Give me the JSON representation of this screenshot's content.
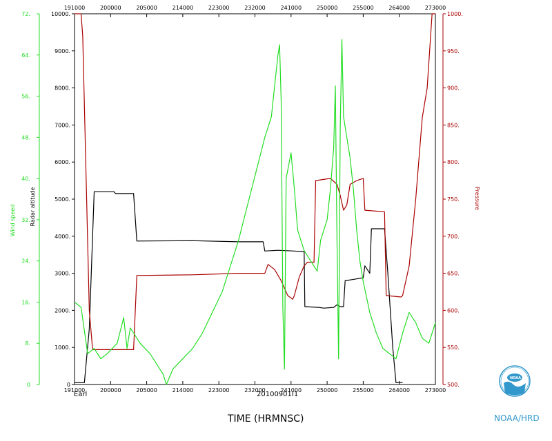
{
  "chart_data": {
    "type": "line",
    "storm_label": "Earl",
    "date_label": "20100901I1",
    "xlabel": "TIME (HRMNSC)",
    "logo_text": "NOAA/HRD",
    "x_ticks": [
      "191000",
      "200000",
      "205000",
      "214000",
      "223000",
      "232000",
      "241000",
      "250000",
      "255000",
      "264000",
      "273000"
    ],
    "x_range": [
      "191000",
      "273000"
    ],
    "axes": {
      "wind": {
        "label": "Wind speed",
        "color": "#22dd22",
        "ticks": [
          "0",
          "8.",
          "16.",
          "24.",
          "32.",
          "40.",
          "48.",
          "56.",
          "64.",
          "72."
        ],
        "range": [
          0,
          72
        ]
      },
      "altitude": {
        "label": "Radar altitude",
        "color": "#000000",
        "ticks": [
          "0",
          "1000.",
          "2000.",
          "3000.",
          "4000.",
          "5000.",
          "6000.",
          "7000.",
          "8000.",
          "9000.",
          "10000."
        ],
        "range": [
          0,
          10000
        ]
      },
      "pressure": {
        "label": "Pressure",
        "color": "#aa0000",
        "ticks": [
          "500.",
          "550.",
          "600.",
          "650.",
          "700.",
          "750.",
          "800.",
          "850.",
          "900.",
          "950.",
          "1000."
        ],
        "range": [
          500,
          1000
        ]
      }
    },
    "series": [
      {
        "name": "Radar altitude",
        "axis": "altitude",
        "color": "#000000",
        "points": [
          [
            0,
            50
          ],
          [
            0.03,
            50
          ],
          [
            0.045,
            1500
          ],
          [
            0.06,
            5200
          ],
          [
            0.12,
            5200
          ],
          [
            0.125,
            5150
          ],
          [
            0.18,
            5150
          ],
          [
            0.19,
            3870
          ],
          [
            0.36,
            3880
          ],
          [
            0.5,
            3850
          ],
          [
            0.575,
            3850
          ],
          [
            0.58,
            3600
          ],
          [
            0.62,
            3620
          ],
          [
            0.67,
            3600
          ],
          [
            0.7,
            3580
          ],
          [
            0.702,
            2100
          ],
          [
            0.745,
            2080
          ],
          [
            0.76,
            2060
          ],
          [
            0.79,
            2080
          ],
          [
            0.8,
            2150
          ],
          [
            0.81,
            2100
          ],
          [
            0.82,
            2100
          ],
          [
            0.825,
            2800
          ],
          [
            0.86,
            2850
          ],
          [
            0.88,
            2880
          ],
          [
            0.885,
            3200
          ],
          [
            0.9,
            3000
          ],
          [
            0.905,
            4200
          ],
          [
            0.945,
            4200
          ],
          [
            0.955,
            3000
          ],
          [
            0.97,
            1000
          ],
          [
            0.98,
            50
          ],
          [
            1,
            50
          ]
        ]
      },
      {
        "name": "Pressure",
        "axis": "pressure",
        "color": "#aa0000",
        "points": [
          [
            0,
            1000
          ],
          [
            0.02,
            1000
          ],
          [
            0.025,
            970
          ],
          [
            0.045,
            600
          ],
          [
            0.055,
            547
          ],
          [
            0.18,
            547
          ],
          [
            0.19,
            647
          ],
          [
            0.36,
            648
          ],
          [
            0.5,
            650
          ],
          [
            0.58,
            650
          ],
          [
            0.59,
            662
          ],
          [
            0.61,
            655
          ],
          [
            0.63,
            640
          ],
          [
            0.65,
            620
          ],
          [
            0.665,
            615
          ],
          [
            0.67,
            620
          ],
          [
            0.685,
            645
          ],
          [
            0.7,
            660
          ],
          [
            0.71,
            665
          ],
          [
            0.73,
            665
          ],
          [
            0.735,
            775
          ],
          [
            0.78,
            778
          ],
          [
            0.8,
            770
          ],
          [
            0.81,
            755
          ],
          [
            0.82,
            735
          ],
          [
            0.83,
            742
          ],
          [
            0.84,
            770
          ],
          [
            0.86,
            775
          ],
          [
            0.88,
            778
          ],
          [
            0.885,
            735
          ],
          [
            0.945,
            733
          ],
          [
            0.95,
            620
          ],
          [
            0.995,
            618
          ],
          [
            1,
            620
          ],
          [
            1.02,
            660
          ],
          [
            1.04,
            750
          ],
          [
            1.06,
            860
          ],
          [
            1.075,
            900
          ],
          [
            1.09,
            1000
          ],
          [
            1.1,
            1000
          ]
        ]
      },
      {
        "name": "Wind speed",
        "axis": "wind",
        "color": "#22dd22",
        "points": [
          [
            0,
            16
          ],
          [
            0.02,
            15
          ],
          [
            0.04,
            6
          ],
          [
            0.06,
            7
          ],
          [
            0.08,
            5
          ],
          [
            0.1,
            6
          ],
          [
            0.13,
            8
          ],
          [
            0.15,
            13
          ],
          [
            0.16,
            7
          ],
          [
            0.17,
            11
          ],
          [
            0.2,
            8
          ],
          [
            0.23,
            6
          ],
          [
            0.25,
            4
          ],
          [
            0.27,
            2
          ],
          [
            0.28,
            0
          ],
          [
            0.3,
            3
          ],
          [
            0.33,
            5
          ],
          [
            0.36,
            7
          ],
          [
            0.39,
            10
          ],
          [
            0.42,
            14
          ],
          [
            0.45,
            18
          ],
          [
            0.48,
            24
          ],
          [
            0.5,
            28
          ],
          [
            0.52,
            33
          ],
          [
            0.54,
            38
          ],
          [
            0.56,
            43
          ],
          [
            0.58,
            48
          ],
          [
            0.6,
            52
          ],
          [
            0.61,
            58
          ],
          [
            0.62,
            64
          ],
          [
            0.625,
            66
          ],
          [
            0.63,
            55
          ],
          [
            0.635,
            15
          ],
          [
            0.64,
            3
          ],
          [
            0.645,
            40
          ],
          [
            0.66,
            45
          ],
          [
            0.67,
            38
          ],
          [
            0.68,
            30
          ],
          [
            0.7,
            26
          ],
          [
            0.72,
            24
          ],
          [
            0.74,
            22
          ],
          [
            0.75,
            28
          ],
          [
            0.77,
            32
          ],
          [
            0.78,
            38
          ],
          [
            0.79,
            46
          ],
          [
            0.795,
            58
          ],
          [
            0.8,
            28
          ],
          [
            0.805,
            5
          ],
          [
            0.81,
            50
          ],
          [
            0.815,
            67
          ],
          [
            0.82,
            52
          ],
          [
            0.83,
            48
          ],
          [
            0.84,
            44
          ],
          [
            0.85,
            38
          ],
          [
            0.86,
            30
          ],
          [
            0.87,
            24
          ],
          [
            0.88,
            20
          ],
          [
            0.9,
            14
          ],
          [
            0.92,
            10
          ],
          [
            0.94,
            7
          ],
          [
            0.96,
            6
          ],
          [
            0.98,
            5
          ],
          [
            1.0,
            10
          ],
          [
            1.02,
            14
          ],
          [
            1.04,
            12
          ],
          [
            1.06,
            9
          ],
          [
            1.08,
            8
          ],
          [
            1.1,
            12
          ]
        ]
      }
    ]
  }
}
